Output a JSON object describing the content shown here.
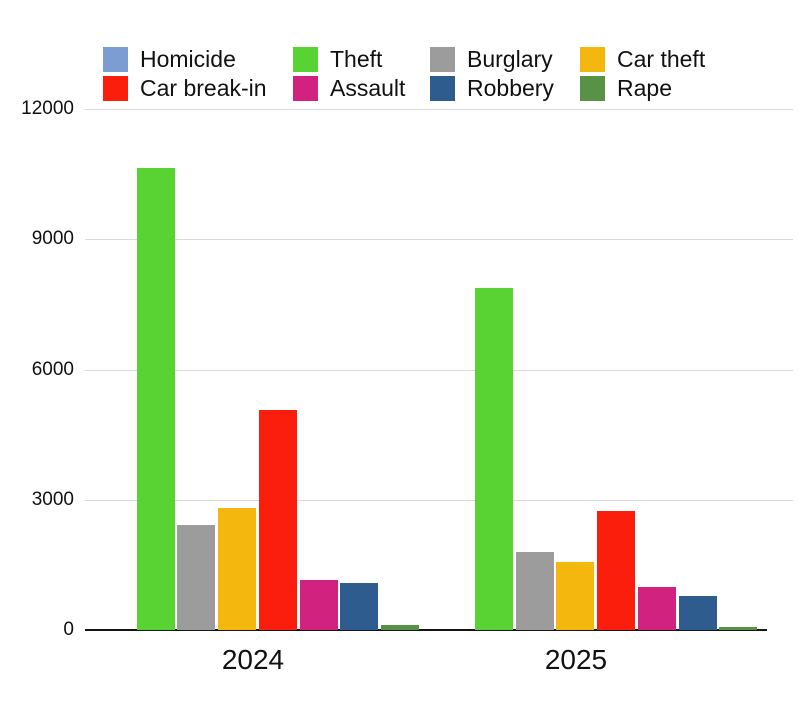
{
  "chart_data": {
    "type": "bar",
    "title": "",
    "xlabel": "",
    "ylabel": "",
    "categories": [
      "2024",
      "2025"
    ],
    "series": [
      {
        "name": "Homicide",
        "color": "#7B9DD1",
        "values": [
          0,
          0
        ]
      },
      {
        "name": "Theft",
        "color": "#59D234",
        "values": [
          10650,
          7880
        ]
      },
      {
        "name": "Burglary",
        "color": "#9C9C9C",
        "values": [
          2420,
          1800
        ]
      },
      {
        "name": "Car theft",
        "color": "#F4B70D",
        "values": [
          2810,
          1570
        ]
      },
      {
        "name": "Car break-in",
        "color": "#FB1E0D",
        "values": [
          5070,
          2740
        ]
      },
      {
        "name": "Assault",
        "color": "#D2227F",
        "values": [
          1150,
          1000
        ]
      },
      {
        "name": "Robbery",
        "color": "#2E5C8F",
        "values": [
          1080,
          790
        ]
      },
      {
        "name": "Rape",
        "color": "#579245",
        "values": [
          110,
          80
        ]
      }
    ],
    "ylim": [
      0,
      12000
    ],
    "yticks": [
      0,
      3000,
      6000,
      9000,
      12000
    ],
    "grid": true,
    "legend_position": "top",
    "legend_rows": [
      [
        "Homicide",
        "Theft",
        "Burglary",
        "Car theft"
      ],
      [
        "Car break-in",
        "Assault",
        "Robbery",
        "Rape"
      ]
    ]
  }
}
